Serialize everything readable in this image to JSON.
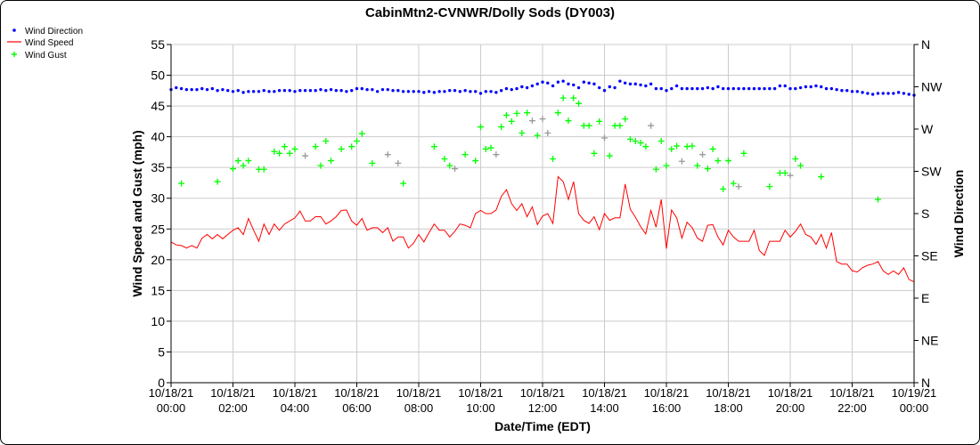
{
  "chart_data": {
    "type": "line",
    "title": "CabinMtn2-CVNWR/Dolly Sods (DY003)",
    "xlabel": "Date/Time (EDT)",
    "ylabel": "Wind Speed and Gust (mph)",
    "y2label": "Wind Direction",
    "ylim": [
      0,
      55
    ],
    "yticks": [
      0,
      5,
      10,
      15,
      20,
      25,
      30,
      35,
      40,
      45,
      50,
      55
    ],
    "y2lim_deg": [
      0,
      360
    ],
    "y2ticks": [
      {
        "deg": 0,
        "label": "N"
      },
      {
        "deg": 45,
        "label": "NE"
      },
      {
        "deg": 90,
        "label": "E"
      },
      {
        "deg": 135,
        "label": "SE"
      },
      {
        "deg": 180,
        "label": "S"
      },
      {
        "deg": 225,
        "label": "SW"
      },
      {
        "deg": 270,
        "label": "W"
      },
      {
        "deg": 315,
        "label": "NW"
      },
      {
        "deg": 360,
        "label": "N"
      }
    ],
    "x_minutes_range": [
      0,
      1440
    ],
    "sample_interval_minutes": 10,
    "xticks": [
      {
        "min": 0,
        "date": "10/18/21",
        "time": "00:00"
      },
      {
        "min": 120,
        "date": "10/18/21",
        "time": "02:00"
      },
      {
        "min": 240,
        "date": "10/18/21",
        "time": "04:00"
      },
      {
        "min": 360,
        "date": "10/18/21",
        "time": "06:00"
      },
      {
        "min": 480,
        "date": "10/18/21",
        "time": "08:00"
      },
      {
        "min": 600,
        "date": "10/18/21",
        "time": "10:00"
      },
      {
        "min": 720,
        "date": "10/18/21",
        "time": "12:00"
      },
      {
        "min": 840,
        "date": "10/18/21",
        "time": "14:00"
      },
      {
        "min": 960,
        "date": "10/18/21",
        "time": "16:00"
      },
      {
        "min": 1080,
        "date": "10/18/21",
        "time": "18:00"
      },
      {
        "min": 1200,
        "date": "10/18/21",
        "time": "20:00"
      },
      {
        "min": 1320,
        "date": "10/18/21",
        "time": "22:00"
      },
      {
        "min": 1440,
        "date": "10/19/21",
        "time": "00:00"
      }
    ],
    "legend": {
      "placement": "top-left",
      "entries": [
        {
          "label": "Wind Direction",
          "color": "#0000ff",
          "marker": "dot"
        },
        {
          "label": "Wind Speed",
          "color": "#ff0000",
          "marker": "line"
        },
        {
          "label": "Wind Gust",
          "color": "#00ff00",
          "marker": "plus"
        }
      ]
    },
    "colors": {
      "direction": "#0000ff",
      "speed": "#ff0000",
      "gust": "#00ff00",
      "gust_alt": "#999999",
      "grid": "#cccccc"
    },
    "wind_speed_mph": [
      22.9,
      22.4,
      22.3,
      21.9,
      22.3,
      21.9,
      23.5,
      24.1,
      23.4,
      24.1,
      23.4,
      24.1,
      24.8,
      25.2,
      24.1,
      26.7,
      24.8,
      23.0,
      25.8,
      24.1,
      25.8,
      24.8,
      25.8,
      26.3,
      26.8,
      27.9,
      26.3,
      26.3,
      27.0,
      27.0,
      25.8,
      26.3,
      27.0,
      28.0,
      28.1,
      26.3,
      25.6,
      26.7,
      24.8,
      25.2,
      25.2,
      24.4,
      25.2,
      23.0,
      23.7,
      23.7,
      21.9,
      22.7,
      24.1,
      22.9,
      24.4,
      25.8,
      24.8,
      24.8,
      23.7,
      24.6,
      25.8,
      25.6,
      25.2,
      27.5,
      28.0,
      27.5,
      27.5,
      28.1,
      30.3,
      31.4,
      29.1,
      28.0,
      29.1,
      27.0,
      28.6,
      25.7,
      27.1,
      27.5,
      25.9,
      33.5,
      32.7,
      29.8,
      32.7,
      27.5,
      26.4,
      25.9,
      27.0,
      24.9,
      27.5,
      26.4,
      26.8,
      26.8,
      32.3,
      28.2,
      26.9,
      25.4,
      24.2,
      28.0,
      25.3,
      29.8,
      21.8,
      28.1,
      26.8,
      23.5,
      26.1,
      25.2,
      23.5,
      23.0,
      25.6,
      25.7,
      23.7,
      22.4,
      24.8,
      23.7,
      23.0,
      23.0,
      23.0,
      24.8,
      21.5,
      20.7,
      23.0,
      23.0,
      23.0,
      24.8,
      23.7,
      24.6,
      25.8,
      24.1,
      23.7,
      22.5,
      24.1,
      21.9,
      24.4,
      19.7,
      19.3,
      19.3,
      18.2,
      18.0,
      18.7,
      19.1,
      19.3,
      19.7,
      18.2,
      17.6,
      18.2,
      17.6,
      18.7,
      16.8,
      16.4
    ],
    "wind_direction_deg": [
      312,
      314,
      313,
      312,
      312,
      312,
      313,
      312,
      313,
      311,
      312,
      311,
      310,
      311,
      309,
      310,
      310,
      310,
      311,
      310,
      310,
      311,
      311,
      311,
      310,
      311,
      311,
      311,
      311,
      312,
      311,
      312,
      311,
      311,
      310,
      311,
      313,
      313,
      312,
      312,
      310,
      312,
      312,
      311,
      311,
      310,
      310,
      310,
      310,
      309,
      310,
      309,
      310,
      310,
      311,
      311,
      310,
      311,
      310,
      310,
      308,
      310,
      310,
      309,
      311,
      313,
      312,
      313,
      315,
      314,
      316,
      318,
      320,
      319,
      316,
      320,
      321,
      318,
      317,
      314,
      320,
      319,
      318,
      314,
      311,
      315,
      314,
      321,
      319,
      318,
      318,
      317,
      316,
      318,
      313,
      313,
      311,
      313,
      316,
      313,
      313,
      313,
      313,
      313,
      314,
      313,
      315,
      313,
      313,
      313,
      313,
      313,
      313,
      313,
      313,
      313,
      313,
      313,
      316,
      316,
      313,
      313,
      314,
      315,
      315,
      316,
      315,
      313,
      313,
      312,
      311,
      311,
      310,
      310,
      309,
      308,
      307,
      308,
      308,
      308,
      308,
      309,
      308,
      307,
      306
    ],
    "wind_gust": [
      {
        "min": 20,
        "mph": 32.4
      },
      {
        "min": 90,
        "mph": 32.7
      },
      {
        "min": 120,
        "mph": 34.8
      },
      {
        "min": 130,
        "mph": 36.1
      },
      {
        "min": 140,
        "mph": 35.3
      },
      {
        "min": 150,
        "mph": 36.1
      },
      {
        "min": 170,
        "mph": 34.7
      },
      {
        "min": 180,
        "mph": 34.7
      },
      {
        "min": 200,
        "mph": 37.6
      },
      {
        "min": 210,
        "mph": 37.3
      },
      {
        "min": 220,
        "mph": 38.4
      },
      {
        "min": 230,
        "mph": 37.3
      },
      {
        "min": 240,
        "mph": 38.0
      },
      {
        "min": 260,
        "mph": 36.9,
        "alt": true
      },
      {
        "min": 280,
        "mph": 38.4
      },
      {
        "min": 290,
        "mph": 35.3
      },
      {
        "min": 300,
        "mph": 39.3
      },
      {
        "min": 310,
        "mph": 36.1
      },
      {
        "min": 330,
        "mph": 38.0
      },
      {
        "min": 350,
        "mph": 38.4
      },
      {
        "min": 360,
        "mph": 39.3
      },
      {
        "min": 370,
        "mph": 40.5
      },
      {
        "min": 390,
        "mph": 35.7
      },
      {
        "min": 420,
        "mph": 37.1,
        "alt": true
      },
      {
        "min": 440,
        "mph": 35.7,
        "alt": true
      },
      {
        "min": 450,
        "mph": 32.4
      },
      {
        "min": 510,
        "mph": 38.4
      },
      {
        "min": 530,
        "mph": 36.4
      },
      {
        "min": 540,
        "mph": 35.3
      },
      {
        "min": 550,
        "mph": 34.8,
        "alt": true
      },
      {
        "min": 570,
        "mph": 37.1
      },
      {
        "min": 590,
        "mph": 36.1
      },
      {
        "min": 600,
        "mph": 41.6
      },
      {
        "min": 610,
        "mph": 38.0
      },
      {
        "min": 620,
        "mph": 38.2
      },
      {
        "min": 630,
        "mph": 37.1,
        "alt": true
      },
      {
        "min": 640,
        "mph": 41.6
      },
      {
        "min": 650,
        "mph": 43.5
      },
      {
        "min": 660,
        "mph": 42.5
      },
      {
        "min": 670,
        "mph": 43.8
      },
      {
        "min": 680,
        "mph": 40.6
      },
      {
        "min": 690,
        "mph": 43.9
      },
      {
        "min": 700,
        "mph": 42.6,
        "alt": true
      },
      {
        "min": 710,
        "mph": 40.2
      },
      {
        "min": 720,
        "mph": 42.9,
        "alt": true
      },
      {
        "min": 730,
        "mph": 40.6,
        "alt": true
      },
      {
        "min": 740,
        "mph": 36.4
      },
      {
        "min": 750,
        "mph": 43.9
      },
      {
        "min": 760,
        "mph": 46.3
      },
      {
        "min": 770,
        "mph": 42.6
      },
      {
        "min": 780,
        "mph": 46.3
      },
      {
        "min": 790,
        "mph": 45.4
      },
      {
        "min": 800,
        "mph": 41.8
      },
      {
        "min": 810,
        "mph": 41.8
      },
      {
        "min": 820,
        "mph": 37.3
      },
      {
        "min": 830,
        "mph": 42.5
      },
      {
        "min": 840,
        "mph": 39.8,
        "alt": true
      },
      {
        "min": 850,
        "mph": 36.9
      },
      {
        "min": 860,
        "mph": 41.8
      },
      {
        "min": 870,
        "mph": 41.8
      },
      {
        "min": 880,
        "mph": 42.9
      },
      {
        "min": 890,
        "mph": 39.6
      },
      {
        "min": 900,
        "mph": 39.3
      },
      {
        "min": 910,
        "mph": 39.0
      },
      {
        "min": 920,
        "mph": 38.4
      },
      {
        "min": 930,
        "mph": 41.8,
        "alt": true
      },
      {
        "min": 940,
        "mph": 34.7
      },
      {
        "min": 950,
        "mph": 39.3
      },
      {
        "min": 960,
        "mph": 35.3
      },
      {
        "min": 970,
        "mph": 38.0
      },
      {
        "min": 980,
        "mph": 38.5
      },
      {
        "min": 990,
        "mph": 36.0,
        "alt": true
      },
      {
        "min": 1000,
        "mph": 38.4
      },
      {
        "min": 1010,
        "mph": 38.5
      },
      {
        "min": 1020,
        "mph": 35.3
      },
      {
        "min": 1030,
        "mph": 37.1,
        "alt": true
      },
      {
        "min": 1040,
        "mph": 34.8
      },
      {
        "min": 1050,
        "mph": 38.0
      },
      {
        "min": 1060,
        "mph": 36.1
      },
      {
        "min": 1070,
        "mph": 31.5
      },
      {
        "min": 1080,
        "mph": 36.1
      },
      {
        "min": 1090,
        "mph": 32.4
      },
      {
        "min": 1100,
        "mph": 31.9,
        "alt": true
      },
      {
        "min": 1110,
        "mph": 37.3
      },
      {
        "min": 1160,
        "mph": 31.9
      },
      {
        "min": 1180,
        "mph": 34.1
      },
      {
        "min": 1190,
        "mph": 34.1
      },
      {
        "min": 1200,
        "mph": 33.7,
        "alt": true
      },
      {
        "min": 1210,
        "mph": 36.4
      },
      {
        "min": 1220,
        "mph": 35.3
      },
      {
        "min": 1260,
        "mph": 33.5
      },
      {
        "min": 1370,
        "mph": 29.8
      }
    ]
  }
}
